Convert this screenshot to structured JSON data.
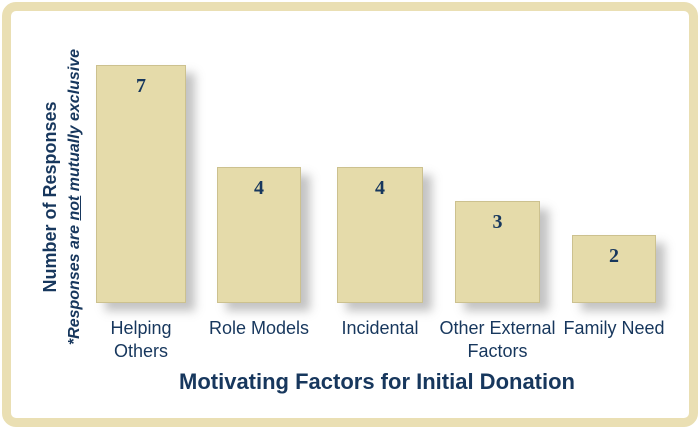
{
  "colors": {
    "frame_border": "#eadfb3",
    "bar_fill": "#e5dbaa",
    "bar_edge": "#b8ab78",
    "text_navy": "#17375d",
    "background": "#ffffff",
    "shadow": "rgba(122,122,122,0.45)"
  },
  "chart_data": {
    "type": "bar",
    "title": "Motivating Factors for Initial Donation",
    "title_position": "bottom",
    "ylabel": "Number of Responses",
    "ylabel_note_full": "*Responses are not mutually exclusive",
    "ylabel_note": {
      "prefix": "*Responses are ",
      "underlined": "not",
      "suffix": " mutually exclusive"
    },
    "categories": [
      "Helping Others",
      "Role Models",
      "Incidental",
      "Other External Factors",
      "Family Need"
    ],
    "category_lines": [
      [
        "Helping",
        "Others"
      ],
      [
        "Role Models"
      ],
      [
        "Incidental"
      ],
      [
        "Other External",
        "Factors"
      ],
      [
        "Family Need"
      ]
    ],
    "values": [
      7,
      4,
      4,
      3,
      2
    ],
    "value_labels_shown": true,
    "ylim": [
      0,
      7
    ],
    "grid": false,
    "legend": "none",
    "axis_lines": false,
    "bar_color": "#e5dbaa"
  }
}
